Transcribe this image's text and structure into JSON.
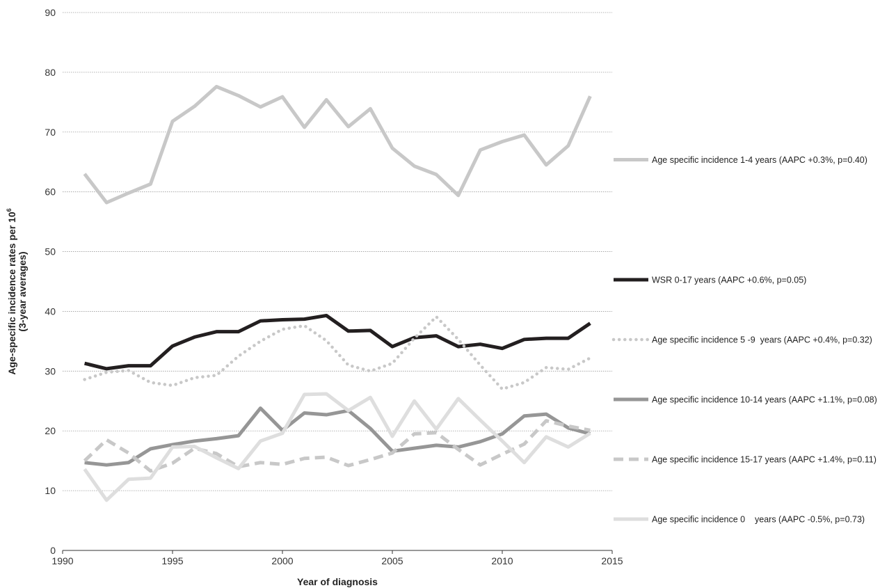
{
  "chart_data": {
    "type": "line",
    "title": "",
    "xlabel": "Year of diagnosis",
    "ylabel": {
      "line1_text": "Age-specific incidence rates per 10",
      "line1_superscript": "6",
      "line2": "(3-year averages)"
    },
    "xlim": [
      1990,
      2015
    ],
    "ylim": [
      0,
      90
    ],
    "x_ticks": [
      1990,
      1995,
      2000,
      2005,
      2010,
      2015
    ],
    "y_ticks": [
      0,
      10,
      20,
      30,
      40,
      50,
      60,
      70,
      80,
      90
    ],
    "grid": "horizontal dotted",
    "legend_position": "right",
    "x": [
      1991,
      1992,
      1993,
      1994,
      1995,
      1996,
      1997,
      1998,
      1999,
      2000,
      2001,
      2002,
      2003,
      2004,
      2005,
      2006,
      2007,
      2008,
      2009,
      2010,
      2011,
      2012,
      2013,
      2014
    ],
    "series": [
      {
        "name": "Age specific incidence 1-4 years (AAPC +0.3%, p=0.40)",
        "color": "#c8c8c8",
        "style": "solid",
        "values": [
          63.0,
          58.2,
          59.8,
          61.3,
          71.8,
          74.3,
          77.6,
          76.1,
          74.2,
          75.9,
          70.8,
          75.4,
          70.9,
          73.9,
          67.3,
          64.3,
          62.9,
          59.4,
          67.0,
          68.4,
          69.5,
          64.5,
          67.7,
          76.0
        ]
      },
      {
        "name": "WSR 0-17 years (AAPC +0.6%, p=0.05)",
        "color": "#231f20",
        "style": "solid",
        "values": [
          31.3,
          30.4,
          30.9,
          30.9,
          34.2,
          35.7,
          36.6,
          36.6,
          38.4,
          38.6,
          38.7,
          39.3,
          36.7,
          36.8,
          34.1,
          35.6,
          35.9,
          34.1,
          34.5,
          33.8,
          35.3,
          35.5,
          35.5,
          38.0
        ]
      },
      {
        "name": "Age specific incidence 5 -9  years (AAPC +0.4%, p=0.32)",
        "color": "#c8c8c8",
        "style": "dotted",
        "values": [
          28.6,
          29.8,
          30.1,
          28.1,
          27.6,
          28.9,
          29.3,
          32.5,
          35.0,
          37.0,
          37.6,
          35.1,
          31.0,
          30.0,
          31.3,
          35.5,
          39.1,
          35.3,
          31.0,
          27.0,
          28.1,
          30.6,
          30.3,
          32.2
        ]
      },
      {
        "name": "Age specific incidence 10-14 years (AAPC +1.1%, p=0.08)",
        "color": "#969696",
        "style": "solid",
        "values": [
          14.7,
          14.3,
          14.7,
          17.0,
          17.7,
          18.3,
          18.7,
          19.2,
          23.8,
          20.1,
          23.0,
          22.7,
          23.4,
          20.4,
          16.6,
          17.1,
          17.6,
          17.3,
          18.2,
          19.5,
          22.5,
          22.8,
          20.5,
          19.5
        ]
      },
      {
        "name": "Age specific incidence 15-17 years (AAPC +1.4%, p=0.11)",
        "color": "#c8c8c8",
        "style": "dashed",
        "values": [
          15.0,
          18.5,
          16.3,
          13.3,
          14.6,
          17.1,
          16.2,
          14.0,
          14.7,
          14.4,
          15.4,
          15.6,
          14.2,
          15.2,
          16.3,
          19.5,
          19.7,
          16.9,
          14.3,
          16.1,
          17.8,
          21.7,
          20.8,
          20.1
        ]
      },
      {
        "name": "Age specific incidence 0    years (AAPC -0.5%, p=0.73)",
        "color": "#dedede",
        "style": "solid",
        "values": [
          13.6,
          8.4,
          11.9,
          12.1,
          17.3,
          17.4,
          15.5,
          13.7,
          18.3,
          19.6,
          26.1,
          26.2,
          23.4,
          25.6,
          19.1,
          25.0,
          20.3,
          25.4,
          21.8,
          18.3,
          14.7,
          19.0,
          17.3,
          19.6
        ]
      }
    ]
  }
}
